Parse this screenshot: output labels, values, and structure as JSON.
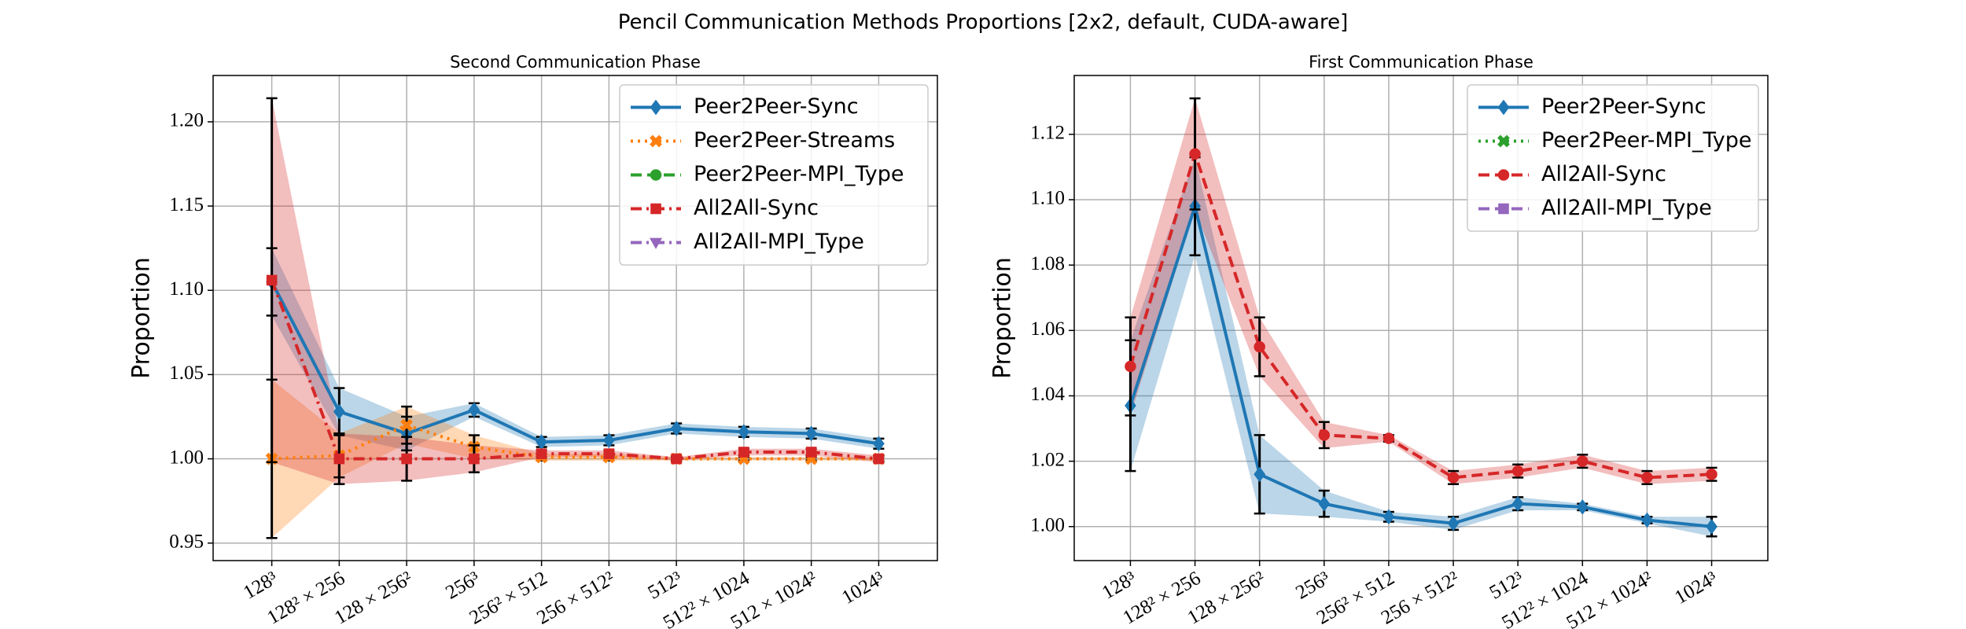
{
  "title": "Pencil Communication Methods Proportions [2x2, default, CUDA-aware]",
  "chart_data": [
    {
      "type": "line",
      "title": "Second Communication Phase",
      "y_label": "Proportion",
      "categories": [
        "128³",
        "128² × 256",
        "128 × 256²",
        "256³",
        "256² × 512",
        "256 × 512²",
        "512³",
        "512² × 1024",
        "512 × 1024²",
        "1024³"
      ],
      "ylim": [
        0.9396,
        1.2275
      ],
      "yticks": [
        {
          "value": 0.95,
          "label": "0.95"
        },
        {
          "value": 1.0,
          "label": "1.00"
        },
        {
          "value": 1.05,
          "label": "1.05"
        },
        {
          "value": 1.1,
          "label": "1.10"
        },
        {
          "value": 1.15,
          "label": "1.15"
        },
        {
          "value": 1.2,
          "label": "1.20"
        }
      ],
      "grid": true,
      "legend": "upper right",
      "series": [
        {
          "name": "Peer2Peer-Sync",
          "color": "#1f77b4",
          "marker": "diamond",
          "dash": "solid",
          "values": [
            1.105,
            1.028,
            1.015,
            1.029,
            1.01,
            1.011,
            1.018,
            1.016,
            1.015,
            1.009
          ],
          "errors": [
            0.02,
            0.014,
            0.01,
            0.004,
            0.003,
            0.003,
            0.003,
            0.003,
            0.003,
            0.003
          ]
        },
        {
          "name": "Peer2Peer-Streams",
          "color": "#ff7f0e",
          "marker": "x",
          "dash": "dotted",
          "values": [
            1.0,
            1.002,
            1.02,
            1.007,
            1.001,
            1.001,
            1.0,
            1.0,
            1.0,
            1.0
          ],
          "errors": [
            0.047,
            0.013,
            0.011,
            0.007,
            0.002,
            0.002,
            0.001,
            0.001,
            0.001,
            0.001
          ]
        },
        {
          "name": "Peer2Peer-MPI_Type",
          "color": "#2ca02c",
          "marker": "circle",
          "dash": "dashed",
          "values": [
            null,
            null,
            null,
            null,
            null,
            null,
            null,
            null,
            null,
            null
          ],
          "errors": [
            null,
            null,
            null,
            null,
            null,
            null,
            null,
            null,
            null,
            null
          ]
        },
        {
          "name": "All2All-Sync",
          "color": "#d62728",
          "marker": "square",
          "dash": "dashdot",
          "values": [
            1.106,
            1.0,
            1.0,
            1.0,
            1.003,
            1.003,
            1.0,
            1.004,
            1.004,
            1.0
          ],
          "errors": [
            0.108,
            0.015,
            0.013,
            0.008,
            0.002,
            0.002,
            0.001,
            0.002,
            0.002,
            0.002
          ]
        },
        {
          "name": "All2All-MPI_Type",
          "color": "#9467bd",
          "marker": "triangle",
          "dash": "dashdot",
          "values": [
            null,
            null,
            null,
            null,
            null,
            null,
            null,
            null,
            null,
            null
          ],
          "errors": [
            null,
            null,
            null,
            null,
            null,
            null,
            null,
            null,
            null,
            null
          ]
        }
      ]
    },
    {
      "type": "line",
      "title": "First Communication Phase",
      "y_label": "Proportion",
      "categories": [
        "128³",
        "128² × 256",
        "128 × 256²",
        "256³",
        "256² × 512",
        "256 × 512²",
        "512³",
        "512² × 1024",
        "512 × 1024²",
        "1024³"
      ],
      "ylim": [
        0.9896,
        1.138
      ],
      "yticks": [
        {
          "value": 1.0,
          "label": "1.00"
        },
        {
          "value": 1.02,
          "label": "1.02"
        },
        {
          "value": 1.04,
          "label": "1.04"
        },
        {
          "value": 1.06,
          "label": "1.06"
        },
        {
          "value": 1.08,
          "label": "1.08"
        },
        {
          "value": 1.1,
          "label": "1.10"
        },
        {
          "value": 1.12,
          "label": "1.12"
        }
      ],
      "grid": true,
      "legend": "upper right",
      "series": [
        {
          "name": "Peer2Peer-Sync",
          "color": "#1f77b4",
          "marker": "diamond",
          "dash": "solid",
          "values": [
            1.037,
            1.098,
            1.016,
            1.007,
            1.003,
            1.001,
            1.007,
            1.006,
            1.002,
            1.0
          ],
          "errors": [
            0.02,
            0.015,
            0.012,
            0.004,
            0.0015,
            0.002,
            0.002,
            0.001,
            0.001,
            0.003
          ]
        },
        {
          "name": "Peer2Peer-MPI_Type",
          "color": "#2ca02c",
          "marker": "x",
          "dash": "dotted",
          "values": [
            null,
            null,
            null,
            null,
            null,
            null,
            null,
            null,
            null,
            null
          ],
          "errors": [
            null,
            null,
            null,
            null,
            null,
            null,
            null,
            null,
            null,
            null
          ]
        },
        {
          "name": "All2All-Sync",
          "color": "#d62728",
          "marker": "circle",
          "dash": "dashed",
          "values": [
            1.049,
            1.114,
            1.055,
            1.028,
            1.027,
            1.015,
            1.017,
            1.02,
            1.015,
            1.016
          ],
          "errors": [
            0.015,
            0.017,
            0.009,
            0.004,
            0.001,
            0.002,
            0.002,
            0.002,
            0.002,
            0.002
          ]
        },
        {
          "name": "All2All-MPI_Type",
          "color": "#9467bd",
          "marker": "square",
          "dash": "dashed",
          "values": [
            null,
            null,
            null,
            null,
            null,
            null,
            null,
            null,
            null,
            null
          ],
          "errors": [
            null,
            null,
            null,
            null,
            null,
            null,
            null,
            null,
            null,
            null
          ]
        }
      ]
    }
  ]
}
